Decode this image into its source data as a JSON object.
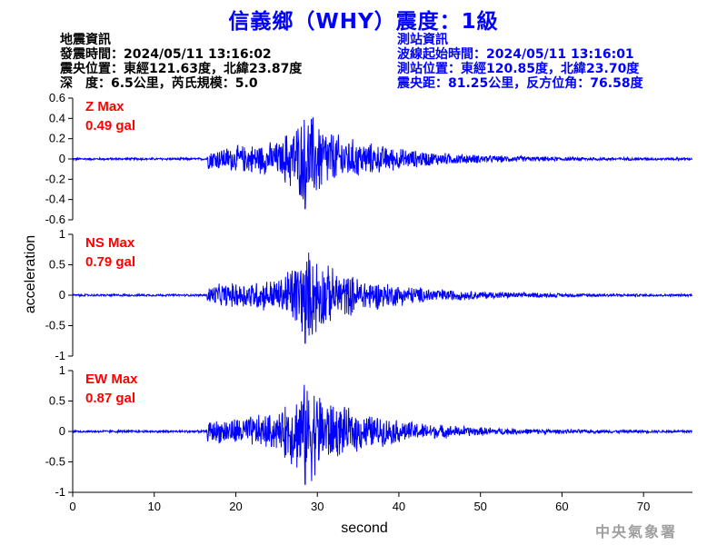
{
  "title": "信義鄉（WHY）震度：1級",
  "quake_info": {
    "heading": "地震資訊",
    "origin_time": "發震時間：2024/05/11 13:16:02",
    "epicenter": "震央位置：東經121.63度，北緯23.87度",
    "depth_magnitude": "深　度：6.5公里，芮氏規模：5.0"
  },
  "station_info": {
    "heading": "測站資訊",
    "wave_start": "波線起始時間：2024/05/11 13:16:01",
    "location": "測站位置：東經120.85度，北緯23.70度",
    "distance": "震央距：81.25公里，反方位角：76.58度"
  },
  "agency": "中央氣象署",
  "colors": {
    "title": "#0000ff",
    "trace": "#0000ff",
    "max_label": "#ff0000",
    "agency": "#a0a0a0"
  },
  "chart_data": {
    "type": "line",
    "xlabel": "second",
    "ylabel": "acceleration",
    "xlim": [
      0,
      76
    ],
    "x_ticks": [
      0,
      10,
      20,
      30,
      40,
      50,
      60,
      70
    ],
    "onset_s": 16.5,
    "peak_s": 28.5,
    "panels": [
      {
        "label": "Z Max",
        "value": "0.49 gal",
        "peak": 0.49,
        "ylim": [
          -0.6,
          0.6
        ],
        "y_ticks": [
          0.6,
          0.4,
          0.2,
          0,
          -0.2,
          -0.4,
          -0.6
        ],
        "y_tick_labels": [
          "0.6",
          "0.4",
          "0.2",
          "0",
          "-0.2",
          "-0.4",
          "-0.6"
        ]
      },
      {
        "label": "NS Max",
        "value": "0.79 gal",
        "peak": 0.79,
        "ylim": [
          -1,
          1
        ],
        "y_ticks": [
          1,
          0.5,
          0,
          -0.5,
          -1
        ],
        "y_tick_labels": [
          "1",
          "0.5",
          "0",
          "-0.5",
          "-1"
        ]
      },
      {
        "label": "EW Max",
        "value": "0.87 gal",
        "peak": 0.87,
        "ylim": [
          -1,
          1
        ],
        "y_ticks": [
          1,
          0.5,
          0,
          -0.5,
          -1
        ],
        "y_tick_labels": [
          "1",
          "0.5",
          "0",
          "-0.5",
          "-1"
        ]
      }
    ]
  }
}
